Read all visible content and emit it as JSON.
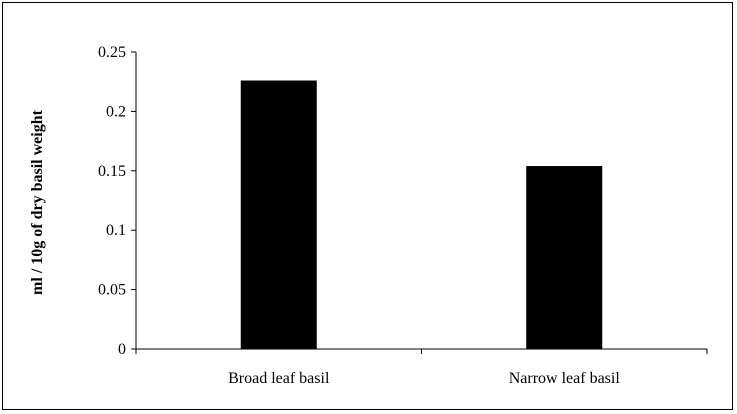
{
  "chart_data": {
    "type": "bar",
    "categories": [
      "Broad leaf basil",
      "Narrow leaf basil"
    ],
    "values": [
      0.226,
      0.154
    ],
    "title": "",
    "xlabel": "",
    "ylabel": "ml / 10g of dry basil weight",
    "ylim": [
      0,
      0.25
    ],
    "yticks": [
      0,
      0.05,
      0.1,
      0.15,
      0.2,
      0.25
    ],
    "ytick_labels": [
      "0",
      "0.05",
      "0.1",
      "0.15",
      "0.2",
      "0.25"
    ],
    "grid": false,
    "legend": "none",
    "bar_color": "#000000"
  }
}
